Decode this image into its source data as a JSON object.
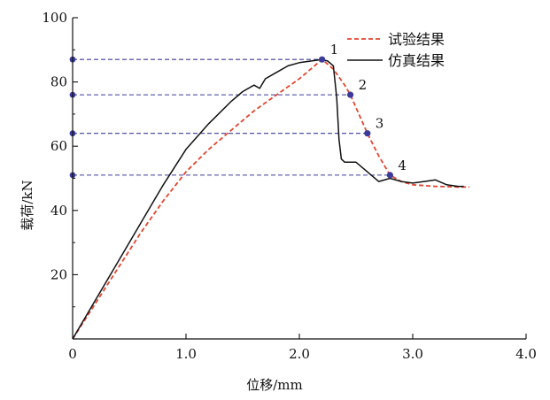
{
  "chart_data": {
    "type": "line",
    "xlabel": "位移/mm",
    "ylabel": "载荷/kN",
    "xlim": [
      0,
      4.0
    ],
    "ylim": [
      0,
      100
    ],
    "x_ticks": [
      {
        "value": 0,
        "label": "0"
      },
      {
        "value": 1.0,
        "label": "1.0"
      },
      {
        "value": 2.0,
        "label": "2.0"
      },
      {
        "value": 3.0,
        "label": "3.0"
      },
      {
        "value": 4.0,
        "label": "4.0"
      }
    ],
    "y_ticks": [
      {
        "value": 20,
        "label": "20"
      },
      {
        "value": 40,
        "label": "40"
      },
      {
        "value": 60,
        "label": "60"
      },
      {
        "value": 80,
        "label": "80"
      },
      {
        "value": 100,
        "label": "100"
      }
    ],
    "legend_position": "top-right",
    "series": [
      {
        "name": "试验结果",
        "color": "#e3452f",
        "style": "dashed",
        "x": [
          0,
          0.2,
          0.4,
          0.6,
          0.8,
          1.0,
          1.2,
          1.4,
          1.6,
          1.8,
          2.0,
          2.1,
          2.2,
          2.3,
          2.4,
          2.45,
          2.5,
          2.6,
          2.7,
          2.8,
          2.9,
          3.0,
          3.2,
          3.4,
          3.5
        ],
        "y": [
          0,
          11,
          22,
          33,
          43,
          52,
          59,
          65,
          71,
          76,
          81,
          84,
          87,
          84,
          79,
          76,
          72,
          64,
          57,
          51,
          49,
          48,
          47.5,
          47.3,
          47.3
        ]
      },
      {
        "name": "仿真结果",
        "color": "#111111",
        "style": "solid",
        "x": [
          0,
          0.2,
          0.4,
          0.6,
          0.8,
          1.0,
          1.2,
          1.4,
          1.5,
          1.6,
          1.65,
          1.7,
          1.8,
          1.9,
          2.0,
          2.1,
          2.2,
          2.25,
          2.3,
          2.33,
          2.35,
          2.37,
          2.4,
          2.5,
          2.6,
          2.7,
          2.8,
          2.9,
          3.0,
          3.1,
          3.2,
          3.3,
          3.4,
          3.45
        ],
        "y": [
          0,
          12,
          24,
          36,
          48,
          59,
          67,
          74,
          77,
          79,
          78,
          81,
          83,
          85,
          86,
          86.5,
          87,
          86.5,
          85,
          75,
          62,
          56,
          55,
          55,
          52,
          49,
          50,
          49,
          48.5,
          49,
          49.5,
          48,
          47.5,
          47.5
        ]
      }
    ],
    "markers": [
      {
        "label": "1",
        "x": 2.2,
        "y": 87
      },
      {
        "label": "2",
        "x": 2.45,
        "y": 76
      },
      {
        "label": "3",
        "x": 2.6,
        "y": 64
      },
      {
        "label": "4",
        "x": 2.8,
        "y": 51
      }
    ],
    "reference_lines_color": "#3b3b9c",
    "marker_color": "#3b3b9c"
  }
}
